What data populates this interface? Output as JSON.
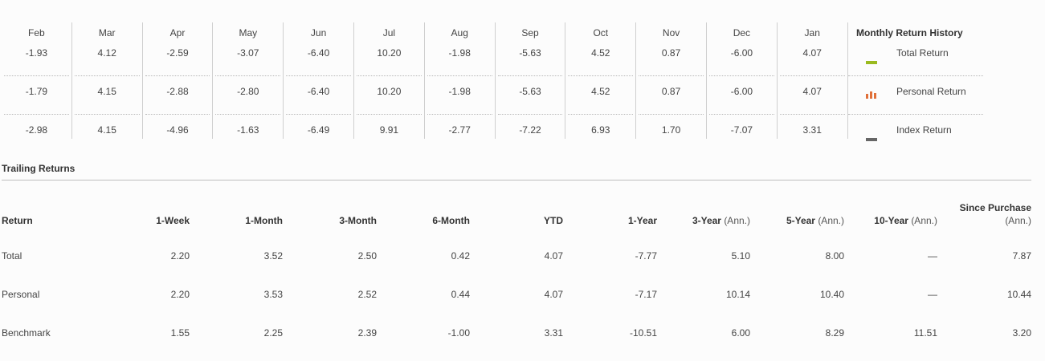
{
  "monthly": {
    "months": [
      "Feb",
      "Mar",
      "Apr",
      "May",
      "Jun",
      "Jul",
      "Aug",
      "Sep",
      "Oct",
      "Nov",
      "Dec",
      "Jan"
    ],
    "rows": [
      [
        "-1.93",
        "4.12",
        "-2.59",
        "-3.07",
        "-6.40",
        "10.20",
        "-1.98",
        "-5.63",
        "4.52",
        "0.87",
        "-6.00",
        "4.07"
      ],
      [
        "-1.79",
        "4.15",
        "-2.88",
        "-2.80",
        "-6.40",
        "10.20",
        "-1.98",
        "-5.63",
        "4.52",
        "0.87",
        "-6.00",
        "4.07"
      ],
      [
        "-2.98",
        "4.15",
        "-4.96",
        "-1.63",
        "-6.49",
        "9.91",
        "-2.77",
        "-7.22",
        "6.93",
        "1.70",
        "-7.07",
        "3.31"
      ]
    ],
    "legend": {
      "title": "Monthly Return History",
      "items": [
        {
          "label": "Total Return",
          "icon": "green-bar-icon",
          "color": "#9aba1f"
        },
        {
          "label": "Personal Return",
          "icon": "bar-chart-icon",
          "color": "#e0703a"
        },
        {
          "label": "Index Return",
          "icon": "gray-bar-icon",
          "color": "#666666"
        }
      ]
    }
  },
  "trailing": {
    "title": "Trailing Returns",
    "headers": [
      {
        "main": "Return",
        "ann": ""
      },
      {
        "main": "1-Week",
        "ann": ""
      },
      {
        "main": "1-Month",
        "ann": ""
      },
      {
        "main": "3-Month",
        "ann": ""
      },
      {
        "main": "6-Month",
        "ann": ""
      },
      {
        "main": "YTD",
        "ann": ""
      },
      {
        "main": "1-Year",
        "ann": ""
      },
      {
        "main": "3-Year",
        "ann": "(Ann.)"
      },
      {
        "main": "5-Year",
        "ann": "(Ann.)"
      },
      {
        "main": "10-Year",
        "ann": "(Ann.)"
      },
      {
        "main": "Since Purchase",
        "ann": "(Ann.)"
      }
    ],
    "rows": [
      [
        "Total",
        "2.20",
        "3.52",
        "2.50",
        "0.42",
        "4.07",
        "-7.77",
        "5.10",
        "8.00",
        "—",
        "7.87"
      ],
      [
        "Personal",
        "2.20",
        "3.53",
        "2.52",
        "0.44",
        "4.07",
        "-7.17",
        "10.14",
        "10.40",
        "—",
        "10.44"
      ],
      [
        "Benchmark",
        "1.55",
        "2.25",
        "2.39",
        "-1.00",
        "3.31",
        "-10.51",
        "6.00",
        "8.29",
        "11.51",
        "3.20"
      ]
    ]
  }
}
